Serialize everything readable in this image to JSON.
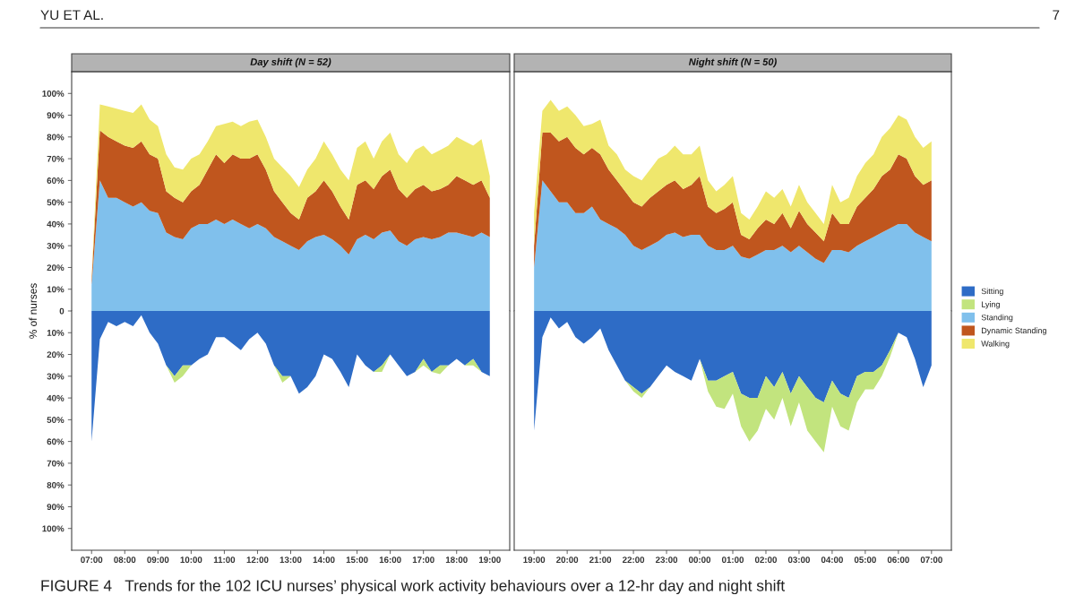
{
  "chart_data": [
    {
      "type": "area",
      "title": "Day shift (N = 52)",
      "ylabel": "% of nurses",
      "stacked": true,
      "tick_labels": "y",
      "annotations": [
        "YU ET AL.",
        "7",
        "FIGURE 4   Trends for the 102 ICU nurses’ physical work activity behaviours over a 12-hr day and night shift"
      ],
      "x": [
        7,
        7.25,
        7.5,
        7.75,
        8,
        8.25,
        8.5,
        8.75,
        9,
        9.25,
        9.5,
        9.75,
        10,
        10.25,
        10.5,
        10.75,
        11,
        11.25,
        11.5,
        11.75,
        12,
        12.25,
        12.5,
        12.75,
        13,
        13.25,
        13.5,
        13.75,
        14,
        14.25,
        14.5,
        14.75,
        15,
        15.25,
        15.5,
        15.75,
        16,
        16.25,
        16.5,
        16.75,
        17,
        17.25,
        17.5,
        17.75,
        18,
        18.25,
        18.5,
        18.75,
        19
      ],
      "series": [
        {
          "color": "#80c0ec",
          "values": [
            12,
            60,
            52,
            52,
            50,
            48,
            50,
            46,
            45,
            36,
            34,
            33,
            38,
            40,
            40,
            42,
            40,
            42,
            40,
            38,
            40,
            38,
            34,
            32,
            30,
            28,
            32,
            34,
            35,
            33,
            30,
            26,
            33,
            35,
            33,
            36,
            37,
            32,
            30,
            33,
            34,
            33,
            34,
            36,
            36,
            35,
            34,
            36,
            34
          ]
        },
        {
          "color": "#c0561e",
          "values": [
            2,
            23,
            28,
            26,
            26,
            27,
            28,
            26,
            25,
            19,
            18,
            17,
            17,
            18,
            25,
            30,
            28,
            30,
            30,
            32,
            32,
            27,
            21,
            18,
            15,
            14,
            20,
            21,
            25,
            22,
            18,
            16,
            25,
            25,
            23,
            26,
            28,
            24,
            22,
            23,
            24,
            22,
            22,
            22,
            26,
            25,
            24,
            24,
            18
          ]
        },
        {
          "color": "#efe76d",
          "values": [
            1,
            12,
            14,
            15,
            16,
            16,
            17,
            16,
            15,
            17,
            14,
            15,
            15,
            14,
            13,
            13,
            18,
            15,
            15,
            17,
            16,
            15,
            15,
            16,
            17,
            15,
            13,
            15,
            18,
            17,
            17,
            18,
            17,
            18,
            14,
            16,
            17,
            16,
            16,
            18,
            18,
            17,
            18,
            18,
            18,
            18,
            18,
            19,
            10
          ]
        }
      ],
      "xlim": [
        6.4,
        19.6
      ],
      "ylim": [
        0,
        110
      ],
      "yticks": [
        0,
        {
          "value": 10,
          "label": "10%"
        },
        {
          "value": 20,
          "label": "20%"
        },
        {
          "value": 30,
          "label": "30%"
        },
        {
          "value": 40,
          "label": "40%"
        },
        {
          "value": 50,
          "label": "50%"
        },
        {
          "value": 60,
          "label": "60%"
        },
        {
          "value": 70,
          "label": "70%"
        },
        {
          "value": 80,
          "label": "80%"
        },
        {
          "value": 90,
          "label": "90%"
        },
        {
          "value": 100,
          "label": "100%"
        }
      ]
    },
    {
      "type": "area",
      "stacked": true,
      "x": [
        7,
        7.25,
        7.5,
        7.75,
        8,
        8.25,
        8.5,
        8.75,
        9,
        9.25,
        9.5,
        9.75,
        10,
        10.25,
        10.5,
        10.75,
        11,
        11.25,
        11.5,
        11.75,
        12,
        12.25,
        12.5,
        12.75,
        13,
        13.25,
        13.5,
        13.75,
        14,
        14.25,
        14.5,
        14.75,
        15,
        15.25,
        15.5,
        15.75,
        16,
        16.25,
        16.5,
        16.75,
        17,
        17.25,
        17.5,
        17.75,
        18,
        18.25,
        18.5,
        18.75,
        19
      ],
      "series": [
        {
          "color": "#2e6cc6",
          "values": [
            -60,
            -13,
            -5,
            -7,
            -5,
            -7,
            -2,
            -10,
            -15,
            -25,
            -30,
            -25,
            -25,
            -22,
            -20,
            -12,
            -12,
            -15,
            -18,
            -13,
            -10,
            -15,
            -25,
            -30,
            -30,
            -38,
            -35,
            -30,
            -20,
            -22,
            -28,
            -35,
            -20,
            -25,
            -28,
            -25,
            -20,
            -25,
            -30,
            -28,
            -22,
            -28,
            -25,
            -25,
            -22,
            -25,
            -22,
            -28,
            -30
          ]
        },
        {
          "color": "#c2e47e",
          "values": [
            0,
            0,
            0,
            0,
            0,
            0,
            0,
            0,
            0,
            0,
            -3,
            -5,
            0,
            0,
            0,
            0,
            0,
            0,
            0,
            0,
            0,
            0,
            0,
            -3,
            0,
            0,
            0,
            0,
            0,
            0,
            0,
            0,
            0,
            0,
            0,
            -3,
            0,
            0,
            0,
            0,
            -3,
            0,
            -4,
            0,
            0,
            0,
            -3,
            0,
            0
          ]
        }
      ],
      "xlim": [
        6.4,
        19.6
      ],
      "xticks": [
        {
          "value": 7,
          "label": "07:00"
        },
        {
          "value": 8,
          "label": "08:00"
        },
        {
          "value": 9,
          "label": "09:00"
        },
        {
          "value": 10,
          "label": "10:00"
        },
        {
          "value": 11,
          "label": "11:00"
        },
        {
          "value": 12,
          "label": "12:00"
        },
        {
          "value": 13,
          "label": "13:00"
        },
        {
          "value": 14,
          "label": "14:00"
        },
        {
          "value": 15,
          "label": "15:00"
        },
        {
          "value": 16,
          "label": "16:00"
        },
        {
          "value": 17,
          "label": "17:00"
        },
        {
          "value": 18,
          "label": "18:00"
        },
        {
          "value": 19,
          "label": "19:00"
        }
      ],
      "ylim": [
        -110,
        0
      ],
      "yticks": [
        {
          "value": -100,
          "label": "100%"
        },
        {
          "value": -90,
          "label": "90%"
        },
        {
          "value": -80,
          "label": "80%"
        },
        {
          "value": -70,
          "label": "70%"
        },
        {
          "value": -60,
          "label": "60%"
        },
        {
          "value": -50,
          "label": "50%"
        },
        {
          "value": -40,
          "label": "40%"
        },
        {
          "value": -30,
          "label": "30%"
        },
        {
          "value": -20,
          "label": "20%"
        },
        {
          "value": -10,
          "label": "10%"
        }
      ]
    },
    {
      "type": "area",
      "title": "Night shift (N = 50)",
      "stacked": true,
      "legend": "bottom right",
      "tick_labels": false,
      "x": [
        "2000-01-01T19:00",
        "2000-01-01T19:15",
        "2000-01-01T19:30",
        "2000-01-01T19:45",
        "2000-01-01T20:00",
        "2000-01-01T20:15",
        "2000-01-01T20:30",
        "2000-01-01T20:45",
        "2000-01-01T21:00",
        "2000-01-01T21:15",
        "2000-01-01T21:30",
        "2000-01-01T21:45",
        "2000-01-01T22:00",
        "2000-01-01T22:15",
        "2000-01-01T22:30",
        "2000-01-01T22:45",
        "2000-01-01T23:00",
        "2000-01-01T23:15",
        "2000-01-01T23:30",
        "2000-01-01T23:45",
        "2000-01-02T00:00",
        "2000-01-02T00:15",
        "2000-01-02T00:30",
        "2000-01-02T00:45",
        "2000-01-02T01:00",
        "2000-01-02T01:15",
        "2000-01-02T01:30",
        "2000-01-02T01:45",
        "2000-01-02T02:00",
        "2000-01-02T02:15",
        "2000-01-02T02:30",
        "2000-01-02T02:45",
        "2000-01-02T03:00",
        "2000-01-02T03:15",
        "2000-01-02T03:30",
        "2000-01-02T03:45",
        "2000-01-02T04:00",
        "2000-01-02T04:15",
        "2000-01-02T04:30",
        "2000-01-02T04:45",
        "2000-01-02T05:00",
        "2000-01-02T05:15",
        "2000-01-02T05:30",
        "2000-01-02T05:45",
        "2000-01-02T06:00",
        "2000-01-02T06:15",
        "2000-01-02T06:30",
        "2000-01-02T06:45",
        "2000-01-02T07:00"
      ],
      "series": [
        {
          "name": "Standing",
          "color": "#80c0ec",
          "values": [
            20,
            60,
            55,
            50,
            50,
            45,
            45,
            48,
            42,
            40,
            38,
            35,
            30,
            28,
            30,
            32,
            35,
            36,
            34,
            35,
            35,
            30,
            28,
            28,
            30,
            25,
            24,
            26,
            28,
            28,
            30,
            27,
            30,
            27,
            24,
            22,
            28,
            28,
            27,
            30,
            32,
            34,
            36,
            38,
            40,
            40,
            36,
            34,
            32
          ]
        },
        {
          "name": "Dynamic Standing",
          "color": "#c0561e",
          "values": [
            10,
            22,
            27,
            28,
            30,
            30,
            27,
            27,
            30,
            25,
            22,
            20,
            20,
            20,
            22,
            23,
            23,
            24,
            22,
            23,
            27,
            18,
            17,
            19,
            20,
            10,
            9,
            12,
            14,
            12,
            15,
            11,
            16,
            13,
            12,
            10,
            17,
            12,
            13,
            18,
            20,
            22,
            26,
            27,
            32,
            30,
            26,
            24,
            28
          ]
        },
        {
          "name": "Walking",
          "color": "#efe76d",
          "values": [
            15,
            10,
            15,
            14,
            14,
            15,
            13,
            11,
            16,
            11,
            12,
            10,
            12,
            12,
            13,
            15,
            14,
            16,
            16,
            14,
            14,
            12,
            10,
            11,
            12,
            10,
            9,
            10,
            13,
            12,
            11,
            10,
            12,
            10,
            9,
            8,
            13,
            10,
            12,
            14,
            16,
            16,
            18,
            19,
            18,
            18,
            18,
            17,
            18
          ]
        }
      ],
      "xlim": [
        "2000-01-01T18:24",
        "2000-01-02T07:36"
      ],
      "ylim": [
        0,
        110
      ]
    },
    {
      "type": "area",
      "stacked": true,
      "legend": "top right",
      "tick_labels": "x",
      "x": [
        "2000-01-01T19:00",
        "2000-01-01T19:15",
        "2000-01-01T19:30",
        "2000-01-01T19:45",
        "2000-01-01T20:00",
        "2000-01-01T20:15",
        "2000-01-01T20:30",
        "2000-01-01T20:45",
        "2000-01-01T21:00",
        "2000-01-01T21:15",
        "2000-01-01T21:30",
        "2000-01-01T21:45",
        "2000-01-01T22:00",
        "2000-01-01T22:15",
        "2000-01-01T22:30",
        "2000-01-01T22:45",
        "2000-01-01T23:00",
        "2000-01-01T23:15",
        "2000-01-01T23:30",
        "2000-01-01T23:45",
        "2000-01-02T00:00",
        "2000-01-02T00:15",
        "2000-01-02T00:30",
        "2000-01-02T00:45",
        "2000-01-02T01:00",
        "2000-01-02T01:15",
        "2000-01-02T01:30",
        "2000-01-02T01:45",
        "2000-01-02T02:00",
        "2000-01-02T02:15",
        "2000-01-02T02:30",
        "2000-01-02T02:45",
        "2000-01-02T03:00",
        "2000-01-02T03:15",
        "2000-01-02T03:30",
        "2000-01-02T03:45",
        "2000-01-02T04:00",
        "2000-01-02T04:15",
        "2000-01-02T04:30",
        "2000-01-02T04:45",
        "2000-01-02T05:00",
        "2000-01-02T05:15",
        "2000-01-02T05:30",
        "2000-01-02T05:45",
        "2000-01-02T06:00",
        "2000-01-02T06:15",
        "2000-01-02T06:30",
        "2000-01-02T06:45",
        "2000-01-02T07:00"
      ],
      "series": [
        {
          "name": "Sitting",
          "color": "#2e6cc6",
          "values": [
            -55,
            -12,
            -3,
            -8,
            -5,
            -12,
            -15,
            -12,
            -8,
            -18,
            -25,
            -32,
            -35,
            -38,
            -35,
            -30,
            -25,
            -28,
            -30,
            -32,
            -22,
            -32,
            -32,
            -30,
            -28,
            -38,
            -40,
            -40,
            -30,
            -35,
            -28,
            -38,
            -30,
            -35,
            -40,
            -42,
            -32,
            -38,
            -40,
            -30,
            -28,
            -28,
            -25,
            -18,
            -10,
            -12,
            -22,
            -35,
            -25
          ]
        },
        {
          "name": "Lying",
          "color": "#c2e47e",
          "values": [
            0,
            0,
            0,
            0,
            0,
            0,
            0,
            0,
            0,
            0,
            0,
            0,
            -2,
            -2,
            0,
            0,
            0,
            0,
            0,
            0,
            0,
            -5,
            -12,
            -15,
            -10,
            -15,
            -20,
            -15,
            -15,
            -15,
            -12,
            -15,
            -12,
            -20,
            -20,
            -23,
            -12,
            -15,
            -15,
            -12,
            -8,
            -8,
            -5,
            -3,
            0,
            0,
            0,
            0,
            0
          ]
        }
      ],
      "xlim": [
        "2000-01-01T18:24",
        "2000-01-02T07:36"
      ],
      "xticks": [
        {
          "value": "2000-01-01T19:00",
          "label": "19:00"
        },
        {
          "value": "2000-01-01T20:00",
          "label": "20:00"
        },
        {
          "value": "2000-01-01T21:00",
          "label": "21:00"
        },
        {
          "value": "2000-01-01T22:00",
          "label": "22:00"
        },
        {
          "value": "2000-01-01T23:00",
          "label": "23:00"
        },
        {
          "value": "2000-01-02T00:00",
          "label": "00:00"
        },
        {
          "value": "2000-01-02T01:00",
          "label": "01:00"
        },
        {
          "value": "2000-01-02T02:00",
          "label": "02:00"
        },
        {
          "value": "2000-01-02T03:00",
          "label": "03:00"
        },
        {
          "value": "2000-01-02T04:00",
          "label": "04:00"
        },
        {
          "value": "2000-01-02T05:00",
          "label": "05:00"
        },
        {
          "value": "2000-01-02T06:00",
          "label": "06:00"
        },
        {
          "value": "2000-01-02T07:00",
          "label": "07:00"
        }
      ],
      "ylim": [
        -110,
        0
      ]
    }
  ]
}
